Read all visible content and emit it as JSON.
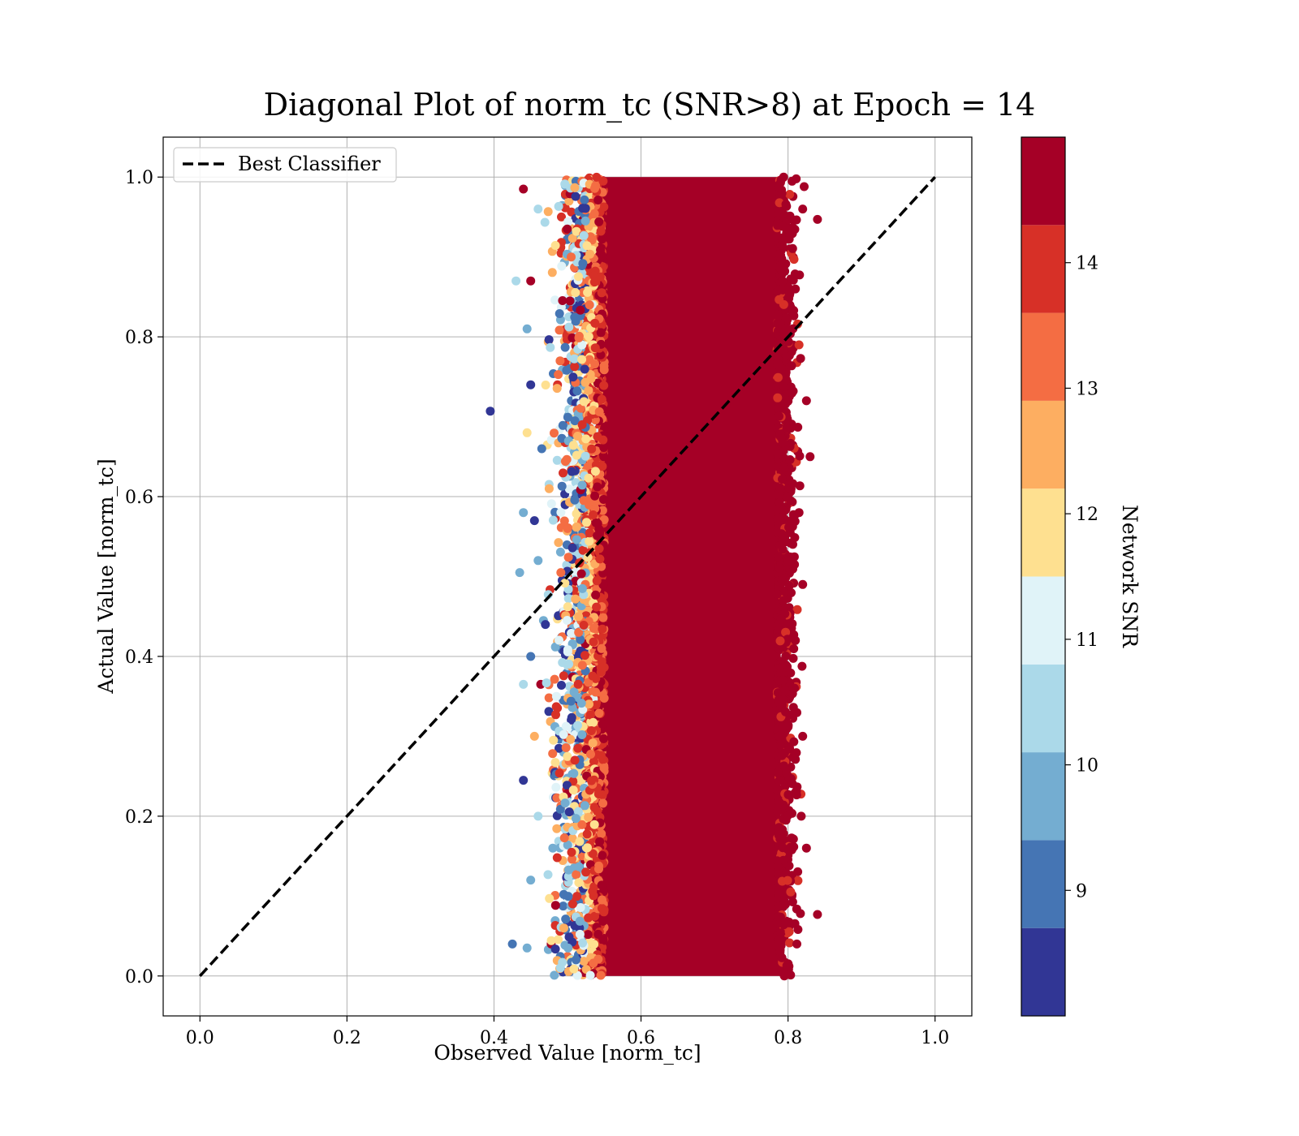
{
  "chart_data": {
    "type": "scatter",
    "title": "Diagonal Plot of norm_tc (SNR>8) at Epoch = 14",
    "xlabel": "Observed Value [norm_tc]",
    "ylabel": "Actual Value [norm_tc]",
    "xlim": [
      -0.05,
      1.05
    ],
    "ylim": [
      -0.05,
      1.05
    ],
    "xticks": [
      "0.0",
      "0.2",
      "0.4",
      "0.6",
      "0.8",
      "1.0"
    ],
    "yticks": [
      "0.0",
      "0.2",
      "0.4",
      "0.6",
      "0.8",
      "1.0"
    ],
    "grid": true,
    "legend": {
      "position": "top-left",
      "entries": [
        {
          "label": "Best Classifier",
          "style": "black dashed line"
        }
      ]
    },
    "reference_line": {
      "name": "Best Classifier",
      "x": [
        0,
        1
      ],
      "y": [
        0,
        1
      ],
      "color": "#000000"
    },
    "colorbar": {
      "label": "Network SNR",
      "colormap": "RdYlBu_r",
      "range": [
        8,
        15
      ],
      "ticks": [
        "9",
        "10",
        "11",
        "12",
        "13",
        "14"
      ],
      "bins": [
        {
          "from": 8.0,
          "to": 8.7,
          "color": "#313695"
        },
        {
          "from": 8.7,
          "to": 9.4,
          "color": "#4575b4"
        },
        {
          "from": 9.4,
          "to": 10.1,
          "color": "#74add1"
        },
        {
          "from": 10.1,
          "to": 10.8,
          "color": "#abd9e9"
        },
        {
          "from": 10.8,
          "to": 11.5,
          "color": "#e0f3f8"
        },
        {
          "from": 11.5,
          "to": 12.2,
          "color": "#fee090"
        },
        {
          "from": 12.2,
          "to": 12.9,
          "color": "#fdae61"
        },
        {
          "from": 12.9,
          "to": 13.6,
          "color": "#f46d43"
        },
        {
          "from": 13.6,
          "to": 14.3,
          "color": "#d73027"
        },
        {
          "from": 14.3,
          "to": 15.0,
          "color": "#a50026"
        }
      ]
    },
    "scatter_summary": {
      "dense_core": {
        "x": [
          0.54,
          0.79
        ],
        "y": [
          0.0,
          1.0
        ],
        "snr": "≥14.3"
      },
      "spread": {
        "x": [
          0.43,
          0.84
        ],
        "y": [
          0.0,
          1.0
        ]
      },
      "outlier": {
        "x": 0.395,
        "y": 0.707
      }
    },
    "points": [
      [
        0.395,
        0.707,
        8.3
      ],
      [
        0.43,
        0.87,
        10.5
      ],
      [
        0.425,
        0.04,
        9.2
      ],
      [
        0.435,
        0.505,
        9.8
      ],
      [
        0.44,
        0.985,
        14.5
      ],
      [
        0.44,
        0.58,
        9.5
      ],
      [
        0.44,
        0.245,
        8.4
      ],
      [
        0.44,
        0.365,
        10.4
      ],
      [
        0.445,
        0.81,
        9.4
      ],
      [
        0.445,
        0.035,
        9.6
      ],
      [
        0.445,
        0.68,
        12.0
      ],
      [
        0.45,
        0.74,
        8.5
      ],
      [
        0.45,
        0.87,
        14.6
      ],
      [
        0.45,
        0.4,
        8.8
      ],
      [
        0.45,
        0.12,
        9.5
      ],
      [
        0.455,
        0.57,
        8.3
      ],
      [
        0.455,
        0.3,
        12.4
      ],
      [
        0.46,
        0.52,
        9.9
      ],
      [
        0.46,
        0.2,
        10.6
      ],
      [
        0.46,
        0.96,
        10.2
      ],
      [
        0.465,
        0.66,
        8.9
      ],
      [
        0.47,
        0.44,
        8.5
      ],
      [
        0.475,
        0.61,
        12.8
      ],
      [
        0.48,
        0.16,
        9.7
      ],
      [
        0.485,
        0.35,
        11.2
      ],
      [
        0.49,
        0.77,
        13.0
      ],
      [
        0.495,
        0.06,
        12.5
      ],
      [
        0.5,
        0.56,
        13.5
      ],
      [
        0.505,
        0.9,
        12.9
      ],
      [
        0.51,
        0.27,
        13.8
      ],
      [
        0.515,
        0.45,
        12.3
      ],
      [
        0.52,
        0.69,
        13.7
      ],
      [
        0.525,
        0.13,
        14.0
      ],
      [
        0.53,
        0.84,
        13.3
      ],
      [
        0.81,
        0.86,
        14.8
      ],
      [
        0.82,
        0.96,
        14.6
      ],
      [
        0.825,
        0.72,
        14.7
      ],
      [
        0.83,
        0.65,
        14.9
      ],
      [
        0.815,
        0.58,
        14.5
      ],
      [
        0.82,
        0.3,
        14.6
      ],
      [
        0.84,
        0.077,
        14.8
      ],
      [
        0.825,
        0.16,
        14.7
      ],
      [
        0.84,
        0.947,
        14.9
      ],
      [
        0.815,
        0.79,
        13.8
      ],
      [
        0.81,
        0.42,
        14.6
      ],
      [
        0.82,
        0.49,
        14.7
      ],
      [
        0.818,
        0.2,
        14.5
      ],
      [
        0.812,
        0.04,
        14.6
      ]
    ]
  }
}
